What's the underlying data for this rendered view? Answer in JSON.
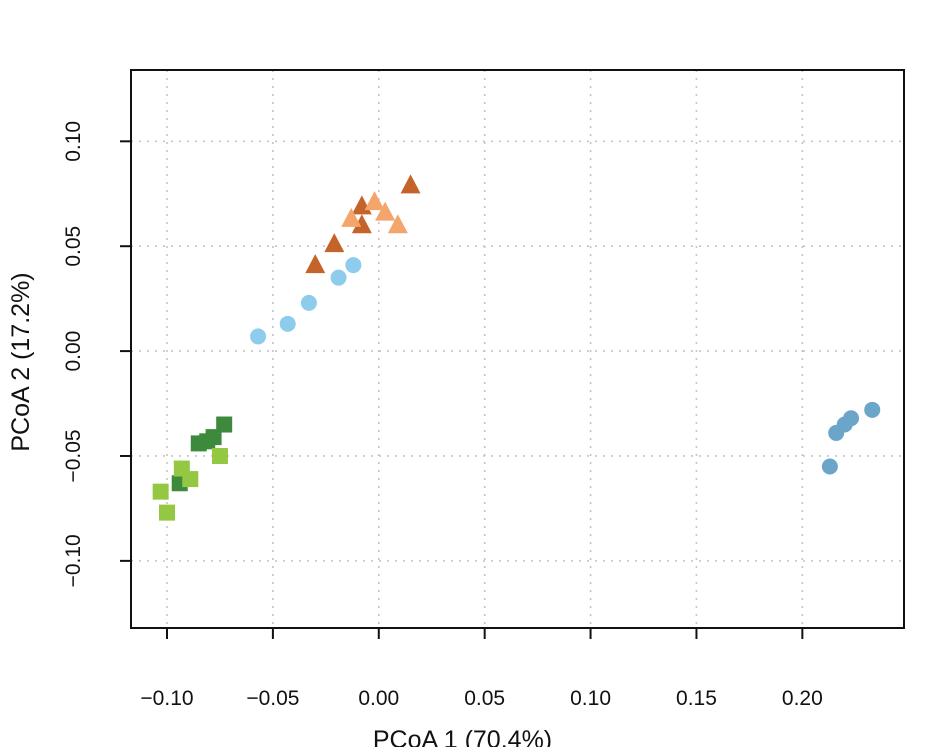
{
  "chart_data": {
    "type": "scatter",
    "title": "",
    "xlabel": "PCoA 1 (70.4%)",
    "ylabel": "PCoA 2 (17.2%)",
    "xlim": [
      -0.117,
      0.248
    ],
    "ylim": [
      -0.132,
      0.134
    ],
    "x_ticks": [
      -0.1,
      -0.05,
      0.0,
      0.05,
      0.1,
      0.15,
      0.2
    ],
    "x_tick_labels": [
      "−0.10",
      "−0.05",
      "0.00",
      "0.05",
      "0.10",
      "0.15",
      "0.20"
    ],
    "y_ticks": [
      -0.1,
      -0.05,
      0.0,
      0.05,
      0.1
    ],
    "y_tick_labels": [
      "−0.10",
      "−0.05",
      "0.00",
      "0.05",
      "0.10"
    ],
    "grid": true,
    "legend": "none",
    "series": [
      {
        "marker": "triangle",
        "color": "#C5642A",
        "points": [
          [
            0.015,
            0.079
          ],
          [
            -0.008,
            0.069
          ],
          [
            -0.008,
            0.06
          ],
          [
            -0.021,
            0.051
          ],
          [
            -0.03,
            0.041
          ]
        ]
      },
      {
        "marker": "triangle",
        "color": "#F4A56C",
        "points": [
          [
            -0.002,
            0.071
          ],
          [
            0.003,
            0.066
          ],
          [
            -0.013,
            0.063
          ],
          [
            0.009,
            0.06
          ]
        ]
      },
      {
        "marker": "circle",
        "color": "#8ECCEE",
        "points": [
          [
            -0.012,
            0.041
          ],
          [
            -0.019,
            0.035
          ],
          [
            -0.033,
            0.023
          ],
          [
            -0.043,
            0.013
          ],
          [
            -0.057,
            0.007
          ]
        ]
      },
      {
        "marker": "circle",
        "color": "#6BA5C9",
        "points": [
          [
            0.233,
            -0.028
          ],
          [
            0.223,
            -0.032
          ],
          [
            0.22,
            -0.035
          ],
          [
            0.216,
            -0.039
          ],
          [
            0.213,
            -0.055
          ]
        ]
      },
      {
        "marker": "square",
        "color": "#3D8A3D",
        "points": [
          [
            -0.073,
            -0.035
          ],
          [
            -0.078,
            -0.041
          ],
          [
            -0.081,
            -0.043
          ],
          [
            -0.085,
            -0.044
          ],
          [
            -0.094,
            -0.063
          ]
        ]
      },
      {
        "marker": "square",
        "color": "#95C842",
        "points": [
          [
            -0.075,
            -0.05
          ],
          [
            -0.093,
            -0.056
          ],
          [
            -0.089,
            -0.061
          ],
          [
            -0.103,
            -0.067
          ],
          [
            -0.1,
            -0.077
          ]
        ]
      }
    ]
  }
}
